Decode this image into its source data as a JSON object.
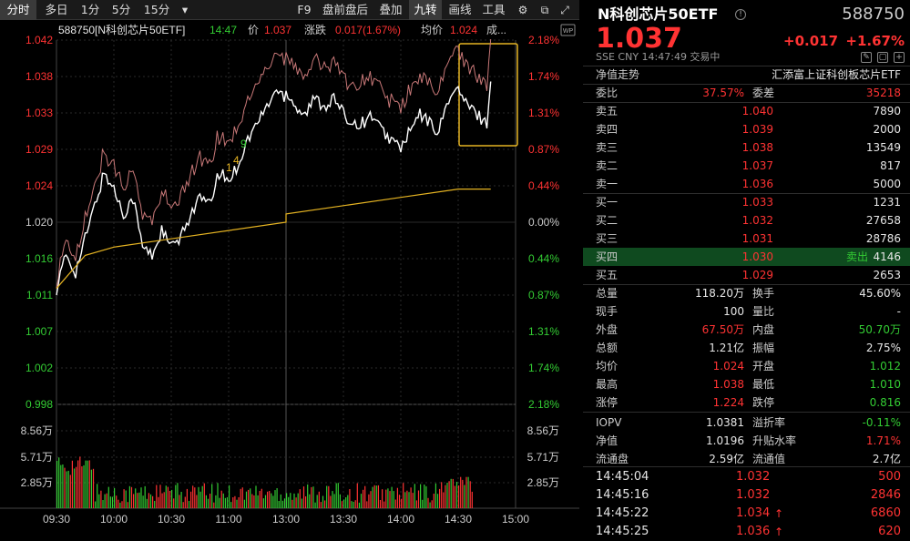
{
  "toolbar": {
    "tabs": [
      "分时",
      "多日",
      "1分",
      "5分",
      "15分"
    ],
    "dropdown": "▾",
    "tools": [
      "F9",
      "盘前盘后",
      "叠加",
      "九转",
      "画线",
      "工具"
    ]
  },
  "chart": {
    "info": {
      "code_name": "588750[N科创芯片50ETF]",
      "time": "14:47",
      "price_label": "价",
      "price": "1.037",
      "change_label": "涨跌",
      "change": "0.017(1.67%)",
      "avg_label": "均价",
      "avg": "1.024",
      "vol_label": "成..."
    },
    "price_ticks": [
      "1.042",
      "1.038",
      "1.033",
      "1.029",
      "1.024",
      "1.020",
      "1.016",
      "1.011",
      "1.007",
      "1.002",
      "0.998"
    ],
    "pct_ticks": [
      "2.18%",
      "1.74%",
      "1.31%",
      "0.87%",
      "0.44%",
      "0.00%",
      "0.44%",
      "0.87%",
      "1.31%",
      "1.74%",
      "2.18%"
    ],
    "vol_ticks_left": [
      "8.56万",
      "5.71万",
      "2.85万"
    ],
    "vol_ticks_right": [
      "8.56万",
      "5.71万",
      "2.85万"
    ],
    "time_labels": [
      "09:30",
      "10:00",
      "10:30",
      "11:00",
      "13:00",
      "13:30",
      "14:00",
      "14:30",
      "15:00"
    ],
    "markers": [
      "9",
      "1",
      "4"
    ],
    "wp_badge": "WP",
    "colors": {
      "price": "#ffffff",
      "avg": "#e6b422",
      "compare": "#c87878",
      "up": "#ff3333",
      "down": "#33cc33",
      "neutral": "#cccccc",
      "highlight": "#e6b422"
    }
  },
  "chart_data": {
    "type": "line",
    "title": "588750[N科创芯片50ETF]",
    "x_range": [
      "09:30",
      "15:00"
    ],
    "ylim": [
      0.998,
      1.042
    ],
    "base": 1.02,
    "series": [
      {
        "name": "价",
        "points": [
          [
            "09:30",
            1.012
          ],
          [
            "09:35",
            1.016
          ],
          [
            "09:40",
            1.014
          ],
          [
            "09:45",
            1.018
          ],
          [
            "09:50",
            1.022
          ],
          [
            "09:55",
            1.026
          ],
          [
            "10:00",
            1.024
          ],
          [
            "10:05",
            1.021
          ],
          [
            "10:10",
            1.023
          ],
          [
            "10:15",
            1.017
          ],
          [
            "10:20",
            1.016
          ],
          [
            "10:25",
            1.019
          ],
          [
            "10:30",
            1.017
          ],
          [
            "10:35",
            1.018
          ],
          [
            "10:40",
            1.021
          ],
          [
            "10:45",
            1.023
          ],
          [
            "10:50",
            1.022
          ],
          [
            "10:55",
            1.026
          ],
          [
            "11:00",
            1.025
          ],
          [
            "11:05",
            1.027
          ],
          [
            "11:10",
            1.03
          ],
          [
            "11:15",
            1.032
          ],
          [
            "11:20",
            1.034
          ],
          [
            "11:25",
            1.036
          ],
          [
            "11:30",
            1.035
          ],
          [
            "13:00",
            1.036
          ],
          [
            "13:05",
            1.034
          ],
          [
            "13:10",
            1.033
          ],
          [
            "13:15",
            1.035
          ],
          [
            "13:20",
            1.034
          ],
          [
            "13:25",
            1.035
          ],
          [
            "13:30",
            1.033
          ],
          [
            "13:35",
            1.032
          ],
          [
            "13:40",
            1.032
          ],
          [
            "13:45",
            1.033
          ],
          [
            "13:50",
            1.031
          ],
          [
            "13:55",
            1.03
          ],
          [
            "14:00",
            1.029
          ],
          [
            "14:05",
            1.031
          ],
          [
            "14:10",
            1.033
          ],
          [
            "14:15",
            1.032
          ],
          [
            "14:20",
            1.031
          ],
          [
            "14:25",
            1.035
          ],
          [
            "14:30",
            1.036
          ],
          [
            "14:35",
            1.034
          ],
          [
            "14:40",
            1.033
          ],
          [
            "14:45",
            1.032
          ],
          [
            "14:47",
            1.037
          ]
        ]
      },
      {
        "name": "均价",
        "points": [
          [
            "09:30",
            1.012
          ],
          [
            "09:45",
            1.016
          ],
          [
            "10:00",
            1.017
          ],
          [
            "10:30",
            1.018
          ],
          [
            "11:00",
            1.019
          ],
          [
            "11:30",
            1.02
          ],
          [
            "13:00",
            1.021
          ],
          [
            "13:30",
            1.022
          ],
          [
            "14:00",
            1.023
          ],
          [
            "14:30",
            1.024
          ],
          [
            "14:47",
            1.024
          ]
        ]
      }
    ]
  },
  "quote": {
    "name": "N科创芯片50ETF",
    "code": "588750",
    "price": "1.037",
    "chg": "+0.017",
    "pct": "+1.67%",
    "meta": "SSE  CNY  14:47:49  交易中",
    "nav_trend": "净值走势",
    "fund_name": "汇添富上证科创板芯片ETF",
    "weibi_label": "委比",
    "weibi": "37.57%",
    "weicha_label": "委差",
    "weicha": "35218",
    "asks": [
      {
        "label": "卖五",
        "price": "1.040",
        "vol": "7890"
      },
      {
        "label": "卖四",
        "price": "1.039",
        "vol": "2000"
      },
      {
        "label": "卖三",
        "price": "1.038",
        "vol": "13549"
      },
      {
        "label": "卖二",
        "price": "1.037",
        "vol": "817"
      },
      {
        "label": "卖一",
        "price": "1.036",
        "vol": "5000"
      }
    ],
    "bids": [
      {
        "label": "买一",
        "price": "1.033",
        "vol": "1231",
        "tag": ""
      },
      {
        "label": "买二",
        "price": "1.032",
        "vol": "27658",
        "tag": ""
      },
      {
        "label": "买三",
        "price": "1.031",
        "vol": "28786",
        "tag": ""
      },
      {
        "label": "买四",
        "price": "1.030",
        "vol": "4146",
        "tag": "卖出"
      },
      {
        "label": "买五",
        "price": "1.029",
        "vol": "2653",
        "tag": ""
      }
    ],
    "stats": [
      {
        "l1": "总量",
        "v1": "118.20万",
        "l2": "换手",
        "v2": "45.60%",
        "c1": "wh",
        "c2": "wh"
      },
      {
        "l1": "现手",
        "v1": "100",
        "l2": "量比",
        "v2": "-",
        "c1": "wh",
        "c2": "wh"
      },
      {
        "l1": "外盘",
        "v1": "67.50万",
        "l2": "内盘",
        "v2": "50.70万",
        "c1": "up",
        "c2": "dn"
      },
      {
        "l1": "总额",
        "v1": "1.21亿",
        "l2": "振幅",
        "v2": "2.75%",
        "c1": "wh",
        "c2": "wh"
      },
      {
        "l1": "均价",
        "v1": "1.024",
        "l2": "开盘",
        "v2": "1.012",
        "c1": "up",
        "c2": "dn"
      },
      {
        "l1": "最高",
        "v1": "1.038",
        "l2": "最低",
        "v2": "1.010",
        "c1": "up",
        "c2": "dn"
      },
      {
        "l1": "涨停",
        "v1": "1.224",
        "l2": "跌停",
        "v2": "0.816",
        "c1": "up",
        "c2": "dn"
      },
      {
        "l1": "IOPV",
        "v1": "1.0381",
        "l2": "溢折率",
        "v2": "-0.11%",
        "c1": "wh",
        "c2": "dn"
      },
      {
        "l1": "净值",
        "v1": "1.0196",
        "l2": "升贴水率",
        "v2": "1.71%",
        "c1": "wh",
        "c2": "up"
      },
      {
        "l1": "流通盘",
        "v1": "2.59亿",
        "l2": "流通值",
        "v2": "2.7亿",
        "c1": "wh",
        "c2": "wh"
      }
    ],
    "ticks": [
      {
        "time": "14:45:04",
        "price": "1.032",
        "vol": "500",
        "arrow": ""
      },
      {
        "time": "14:45:16",
        "price": "1.032",
        "vol": "2846",
        "arrow": ""
      },
      {
        "time": "14:45:22",
        "price": "1.034",
        "vol": "6860",
        "arrow": "↑"
      },
      {
        "time": "14:45:25",
        "price": "1.036",
        "vol": "620",
        "arrow": "↑"
      }
    ]
  }
}
